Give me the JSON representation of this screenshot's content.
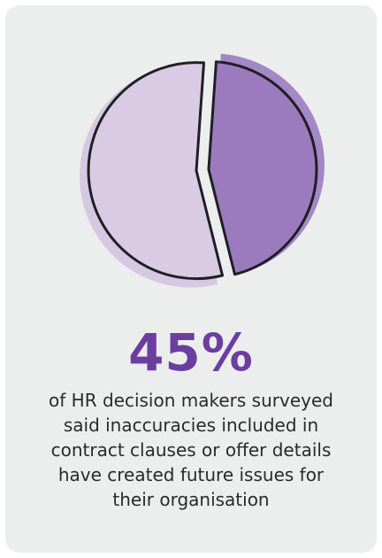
{
  "chart_data": {
    "type": "pie",
    "slices": [
      {
        "value": 45,
        "color": "#9b7bbd",
        "shadow_color": "#a487c6"
      },
      {
        "value": 55,
        "color": "#d9cbe4",
        "shadow_color": "#d6c8e2"
      }
    ],
    "outline_color": "#1f1f24",
    "grid": false,
    "legend": "none"
  },
  "stat": {
    "value": "45%"
  },
  "caption": "of HR decision makers surveyed said inaccuracies included in contract clauses or offer details have created future issues for their organisation"
}
